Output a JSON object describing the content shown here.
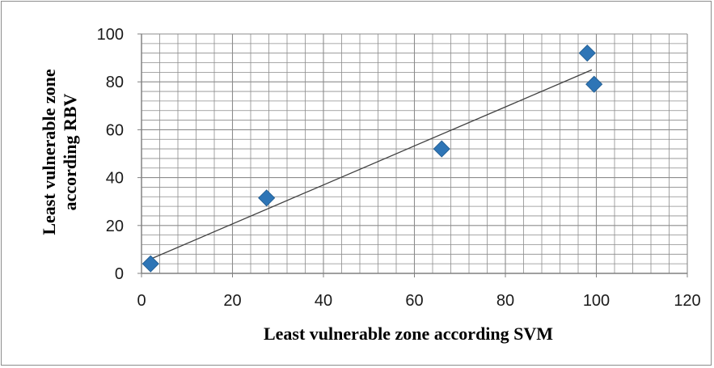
{
  "chart_data": {
    "type": "scatter",
    "title": "",
    "xlabel": "Least vulnerable zone according SVM",
    "ylabel_lines": [
      "Least vulnerable zone",
      "according RBV"
    ],
    "xlim": [
      0,
      120
    ],
    "ylim": [
      0,
      100
    ],
    "x_ticks": [
      "0",
      "20",
      "40",
      "60",
      "80",
      "100",
      "120"
    ],
    "y_ticks": [
      "0",
      "20",
      "40",
      "60",
      "80",
      "100"
    ],
    "x_major_step": 20,
    "x_minor_step": 4,
    "y_major_step": 20,
    "y_minor_step": 4,
    "grid": true,
    "legend": "none",
    "series": [
      {
        "marker": "diamond",
        "color": "#2e75b6",
        "points": [
          {
            "x": 2,
            "y": 4
          },
          {
            "x": 27.5,
            "y": 31.5
          },
          {
            "x": 66,
            "y": 52
          },
          {
            "x": 98,
            "y": 92
          },
          {
            "x": 99.5,
            "y": 79
          }
        ]
      }
    ],
    "trendline": {
      "type": "linear",
      "color": "#404040",
      "from": {
        "x": 2,
        "y": 6
      },
      "to": {
        "x": 99,
        "y": 85
      }
    },
    "colors": {
      "grid": "#8c8c8c",
      "axis": "#808080",
      "marker": "#2e75b6",
      "marker_edge": "#1f5a8e",
      "text": "#1a1a1a"
    }
  }
}
